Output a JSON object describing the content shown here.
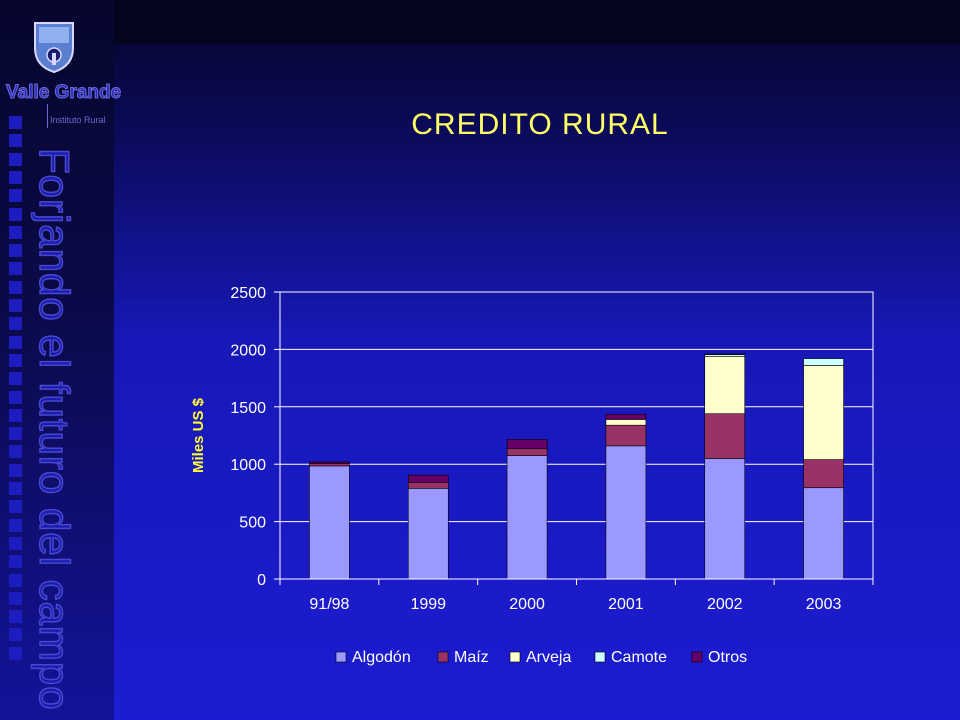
{
  "branding": {
    "logo_main": "Valle Grande",
    "logo_sub": "Instituto Rural",
    "slogan": "Forjando el futuro del campo"
  },
  "slide": {
    "title": "CREDITO RURAL"
  },
  "colors": {
    "Algodón": "#9999ff",
    "Maíz": "#993366",
    "Arveja": "#ffffcc",
    "Camote": "#ccffff",
    "Otros": "#660066"
  },
  "chart_data": {
    "type": "bar",
    "stacked": true,
    "categories": [
      "91/98",
      "1999",
      "2000",
      "2001",
      "2002",
      "2003"
    ],
    "series": [
      {
        "name": "Algodón",
        "values": [
          985,
          790,
          1075,
          1160,
          1050,
          795
        ]
      },
      {
        "name": "Maíz",
        "values": [
          20,
          50,
          60,
          180,
          390,
          245
        ]
      },
      {
        "name": "Arveja",
        "values": [
          0,
          0,
          0,
          50,
          500,
          820
        ]
      },
      {
        "name": "Camote",
        "values": [
          0,
          0,
          0,
          0,
          15,
          60
        ]
      },
      {
        "name": "Otros",
        "values": [
          15,
          65,
          80,
          45,
          5,
          0
        ]
      }
    ],
    "title": "",
    "xlabel": "",
    "ylabel": "Miles US $",
    "ylim": [
      0,
      2500
    ],
    "yticks": [
      "0",
      "500",
      "1000",
      "1500",
      "2000",
      "2500"
    ],
    "grid": true,
    "legend_position": "bottom"
  }
}
